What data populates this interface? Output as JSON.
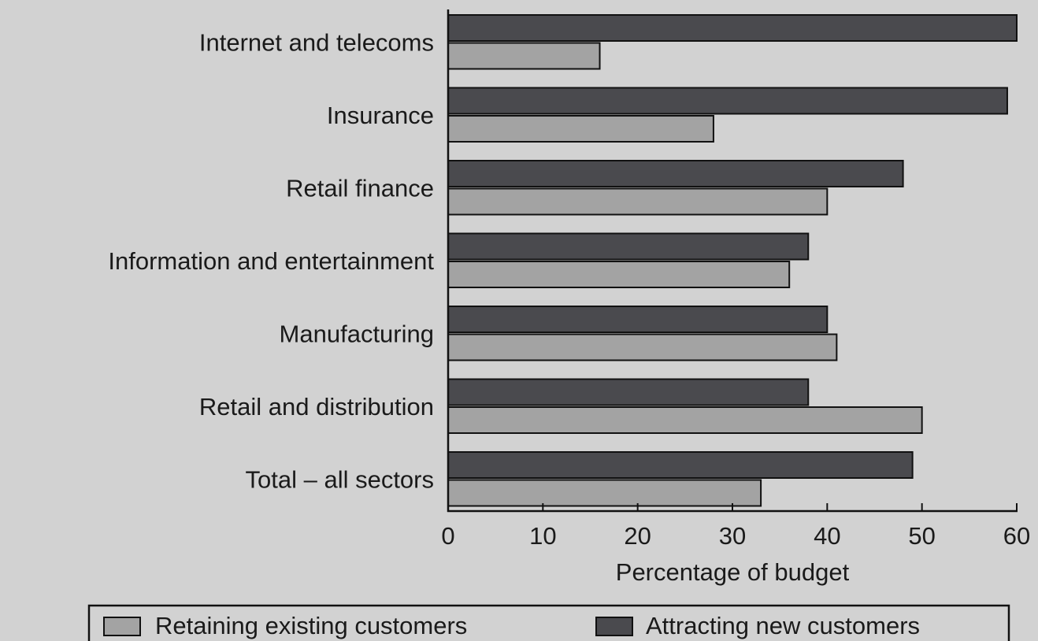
{
  "chart_data": {
    "type": "bar",
    "orientation": "horizontal",
    "categories": [
      "Internet and telecoms",
      "Insurance",
      "Retail finance",
      "Information and entertainment",
      "Manufacturing",
      "Retail and distribution",
      "Total – all sectors"
    ],
    "series": [
      {
        "name": "Attracting new customers",
        "color": "#4a4a4e",
        "values": [
          60,
          59,
          48,
          38,
          40,
          38,
          49
        ]
      },
      {
        "name": "Retaining existing customers",
        "color": "#a3a3a3",
        "values": [
          16,
          28,
          40,
          36,
          41,
          50,
          33
        ]
      }
    ],
    "title": "",
    "xlabel": "Percentage of budget",
    "ylabel": "",
    "xlim": [
      0,
      60
    ],
    "xticks": [
      0,
      10,
      20,
      30,
      40,
      50,
      60
    ],
    "grid": false,
    "legend": {
      "position": "bottom",
      "order": [
        "Retaining existing customers",
        "Attracting new customers"
      ]
    }
  }
}
